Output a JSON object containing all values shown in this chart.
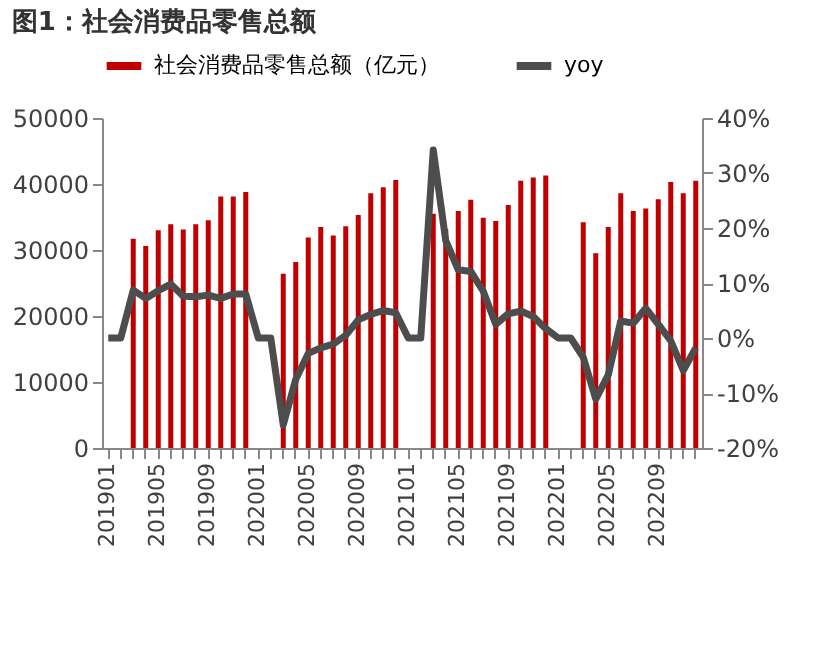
{
  "chart_data": {
    "type": "bar",
    "title": "图1：社会消费品零售总额",
    "categories": [
      "201901",
      null,
      null,
      null,
      "201905",
      null,
      null,
      null,
      "201909",
      null,
      null,
      null,
      "202001",
      null,
      null,
      null,
      "202005",
      null,
      null,
      null,
      "202009",
      null,
      null,
      null,
      "202101",
      null,
      null,
      null,
      "202105",
      null,
      null,
      null,
      "202109",
      null,
      null,
      null,
      "202201",
      null,
      null,
      null,
      "202205",
      null,
      null,
      null,
      "202209",
      null,
      null,
      null
    ],
    "series": [
      {
        "name": "社会消费品零售总额（亿元）",
        "color": "#c00000",
        "values": [
          null,
          null,
          31700,
          30600,
          33000,
          33900,
          33100,
          33900,
          34500,
          38100,
          38100,
          38800,
          null,
          null,
          26400,
          28200,
          31900,
          33500,
          32200,
          33600,
          35300,
          38600,
          39500,
          40600,
          null,
          null,
          35500,
          33200,
          35900,
          37600,
          34900,
          34400,
          36800,
          40500,
          41000,
          41300,
          null,
          null,
          34200,
          29500,
          33500,
          38600,
          35900,
          36300,
          37700,
          40300,
          38600,
          40500
        ]
      },
      {
        "name": "yoy",
        "type": "line",
        "axis": "y2",
        "color": "#4d4d4d",
        "values": [
          0,
          0,
          8.7,
          7.2,
          8.6,
          9.8,
          7.6,
          7.5,
          7.8,
          7.2,
          8.0,
          8.0,
          0,
          0,
          -15.8,
          -7.5,
          -2.8,
          -1.8,
          -1.1,
          0.5,
          3.3,
          4.3,
          5.0,
          4.6,
          0,
          0,
          34.2,
          17.7,
          12.4,
          12.1,
          8.5,
          2.5,
          4.4,
          4.9,
          3.9,
          1.7,
          0,
          0,
          -3.5,
          -11.1,
          -6.7,
          3.1,
          2.7,
          5.4,
          2.5,
          -0.5,
          -5.9,
          -1.8
        ]
      }
    ],
    "ylim": [
      0,
      50000
    ],
    "yticks": [
      0,
      10000,
      20000,
      30000,
      40000,
      50000
    ],
    "y2lim": [
      -20,
      40
    ],
    "y2ticks": [
      {
        "value": -20,
        "label": "-20%"
      },
      {
        "value": -10,
        "label": "-10%"
      },
      {
        "value": 0,
        "label": "0%"
      },
      {
        "value": 10,
        "label": "10%"
      },
      {
        "value": 20,
        "label": "20%"
      },
      {
        "value": 30,
        "label": "30%"
      },
      {
        "value": 40,
        "label": "40%"
      }
    ],
    "legend": "top",
    "grid": false
  }
}
